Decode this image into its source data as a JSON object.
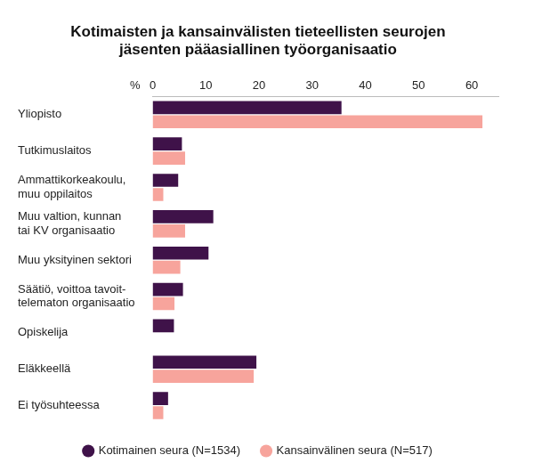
{
  "chart_data": {
    "type": "bar",
    "orientation": "horizontal",
    "title": [
      "Kotimaisten ja kansainvälisten tieteellisten seurojen",
      "jäsenten pääasiallinen työorganisaatio"
    ],
    "xlabel": "%",
    "categories": [
      "Yliopisto",
      "Tutkimuslaitos",
      [
        "Ammattikorkeakoulu,",
        "muu oppilaitos"
      ],
      [
        "Muu valtion, kunnan",
        "tai KV organisaatio"
      ],
      "Muu yksityinen sektori",
      [
        "Säätiö, voittoa tavoit-",
        "telematon organisaatio"
      ],
      "Opiskelija",
      "Eläkkeellä",
      "Ei työsuhteessa"
    ],
    "series": [
      {
        "name": "Kotimainen seura (N=1534)",
        "color": "#3f1249",
        "values": [
          35.5,
          5.5,
          4.8,
          11.4,
          10.5,
          5.7,
          4,
          19.5,
          2.9
        ]
      },
      {
        "name": "Kansainvälinen seura (N=517)",
        "color": "#f7a49c",
        "values": [
          62,
          6.1,
          2,
          6.1,
          5.2,
          4.1,
          0,
          19,
          2
        ]
      }
    ],
    "xlim": [
      0,
      65
    ],
    "xticks": [
      0,
      10,
      20,
      30,
      40,
      50,
      60
    ],
    "grid": false,
    "legend": "bottom"
  }
}
